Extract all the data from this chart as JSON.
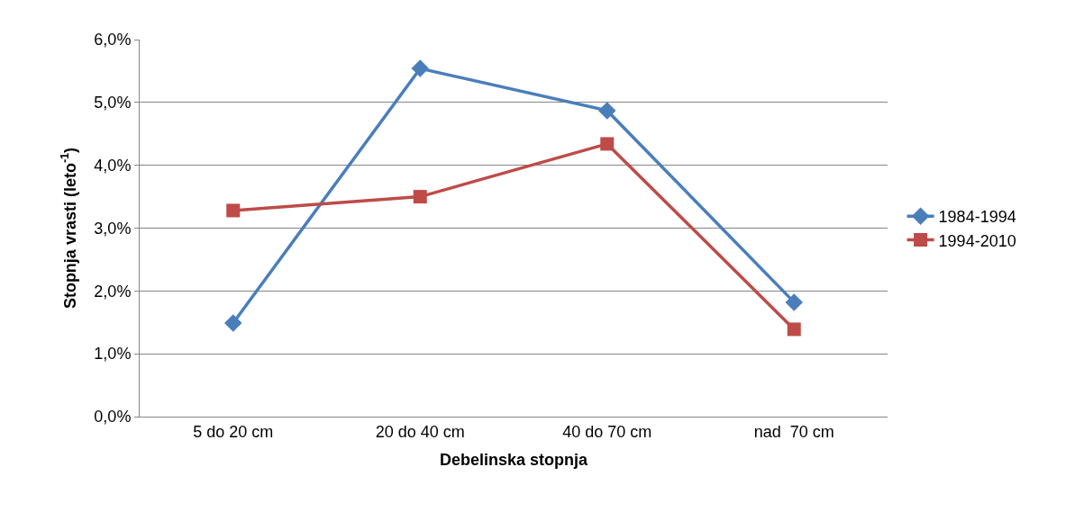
{
  "chart_data": {
    "type": "line",
    "xlabel": "Debelinska stopnja",
    "ylabel": "Stopnja vrasti (leto$^{-1}$)",
    "categories": [
      "5 do 20 cm",
      "20 do 40 cm",
      "40 do 70 cm",
      "nad  70 cm"
    ],
    "series": [
      {
        "name": "1984-1994",
        "color": "#4a7ebb",
        "marker": "diamond",
        "values": [
          1.49,
          5.54,
          4.87,
          1.82
        ]
      },
      {
        "name": "1994-2010",
        "color": "#be4b48",
        "marker": "square",
        "values": [
          3.28,
          3.5,
          4.34,
          1.39
        ]
      }
    ],
    "ylim": [
      0,
      6
    ],
    "yticks": [
      {
        "value": 0,
        "label": "0,0%"
      },
      {
        "value": 1,
        "label": "1,0%"
      },
      {
        "value": 2,
        "label": "2,0%"
      },
      {
        "value": 3,
        "label": "3,0%"
      },
      {
        "value": 4,
        "label": "4,0%"
      },
      {
        "value": 5,
        "label": "5,0%"
      },
      {
        "value": 6,
        "label": "6,0%"
      }
    ],
    "grid": "y",
    "legend": "right",
    "line_style": "solid"
  }
}
